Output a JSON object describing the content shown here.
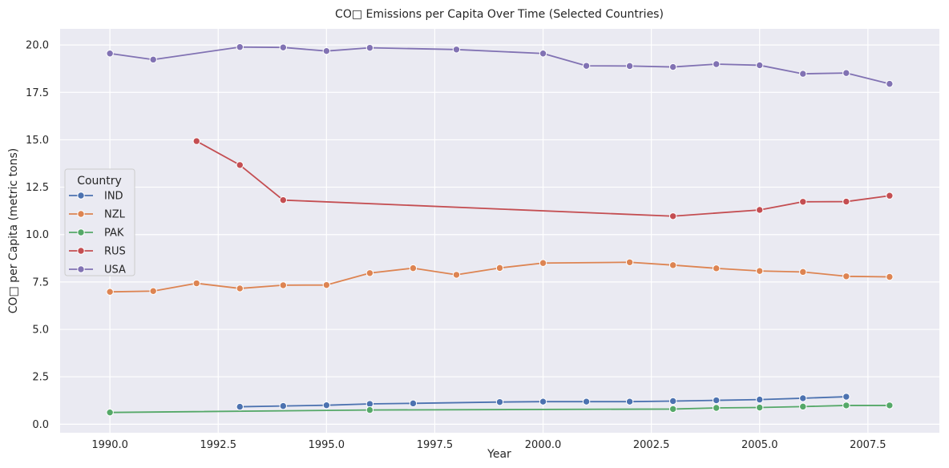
{
  "chart_data": {
    "type": "line",
    "title": "CO□ Emissions per Capita Over Time (Selected Countries)",
    "xlabel": "Year",
    "ylabel": "CO□ per Capita (metric tons)",
    "xlim": [
      1988.85,
      2009.15
    ],
    "ylim": [
      -0.45,
      20.85
    ],
    "xticks": [
      1990.0,
      1992.5,
      1995.0,
      1997.5,
      2000.0,
      2002.5,
      2005.0,
      2007.5
    ],
    "xtick_labels": [
      "1990.0",
      "1992.5",
      "1995.0",
      "1997.5",
      "2000.0",
      "2002.5",
      "2005.0",
      "2007.5"
    ],
    "yticks": [
      0.0,
      2.5,
      5.0,
      7.5,
      10.0,
      12.5,
      15.0,
      17.5,
      20.0
    ],
    "ytick_labels": [
      "0.0",
      "2.5",
      "5.0",
      "7.5",
      "10.0",
      "12.5",
      "15.0",
      "17.5",
      "20.0"
    ],
    "grid": true,
    "background": "#eaeaf2",
    "legend": {
      "title": "Country",
      "placement": "center-left"
    },
    "series": [
      {
        "name": "IND",
        "color": "#4c72b0",
        "points": [
          [
            1993,
            0.92
          ],
          [
            1994,
            0.96
          ],
          [
            1995,
            1.0
          ],
          [
            1996,
            1.07
          ],
          [
            1997,
            1.1
          ],
          [
            1999,
            1.17
          ],
          [
            2000,
            1.19
          ],
          [
            2001,
            1.19
          ],
          [
            2002,
            1.19
          ],
          [
            2003,
            1.22
          ],
          [
            2004,
            1.26
          ],
          [
            2005,
            1.3
          ],
          [
            2006,
            1.37
          ],
          [
            2007,
            1.45
          ]
        ]
      },
      {
        "name": "NZL",
        "color": "#dd8452",
        "points": [
          [
            1990,
            6.98
          ],
          [
            1991,
            7.02
          ],
          [
            1992,
            7.43
          ],
          [
            1993,
            7.16
          ],
          [
            1994,
            7.33
          ],
          [
            1995,
            7.34
          ],
          [
            1996,
            7.97
          ],
          [
            1997,
            8.23
          ],
          [
            1998,
            7.88
          ],
          [
            1999,
            8.24
          ],
          [
            2000,
            8.5
          ],
          [
            2002,
            8.54
          ],
          [
            2003,
            8.39
          ],
          [
            2004,
            8.22
          ],
          [
            2005,
            8.08
          ],
          [
            2006,
            8.03
          ],
          [
            2007,
            7.8
          ],
          [
            2008,
            7.77
          ]
        ]
      },
      {
        "name": "PAK",
        "color": "#55a868",
        "points": [
          [
            1990,
            0.62
          ],
          [
            1996,
            0.75
          ],
          [
            2003,
            0.8
          ],
          [
            2004,
            0.86
          ],
          [
            2005,
            0.88
          ],
          [
            2006,
            0.93
          ],
          [
            2007,
            0.99
          ],
          [
            2008,
            0.99
          ]
        ]
      },
      {
        "name": "RUS",
        "color": "#c44e52",
        "points": [
          [
            1992,
            14.93
          ],
          [
            1993,
            13.67
          ],
          [
            1994,
            11.82
          ],
          [
            2003,
            10.97
          ],
          [
            2005,
            11.3
          ],
          [
            2006,
            11.73
          ],
          [
            2007,
            11.74
          ],
          [
            2008,
            12.05
          ]
        ]
      },
      {
        "name": "USA",
        "color": "#8172b3",
        "points": [
          [
            1990,
            19.55
          ],
          [
            1991,
            19.23
          ],
          [
            1993,
            19.89
          ],
          [
            1994,
            19.87
          ],
          [
            1995,
            19.68
          ],
          [
            1996,
            19.85
          ],
          [
            1998,
            19.76
          ],
          [
            2000,
            19.55
          ],
          [
            2001,
            18.9
          ],
          [
            2002,
            18.89
          ],
          [
            2003,
            18.84
          ],
          [
            2004,
            18.99
          ],
          [
            2005,
            18.93
          ],
          [
            2006,
            18.48
          ],
          [
            2007,
            18.52
          ],
          [
            2008,
            17.95
          ]
        ]
      }
    ]
  }
}
